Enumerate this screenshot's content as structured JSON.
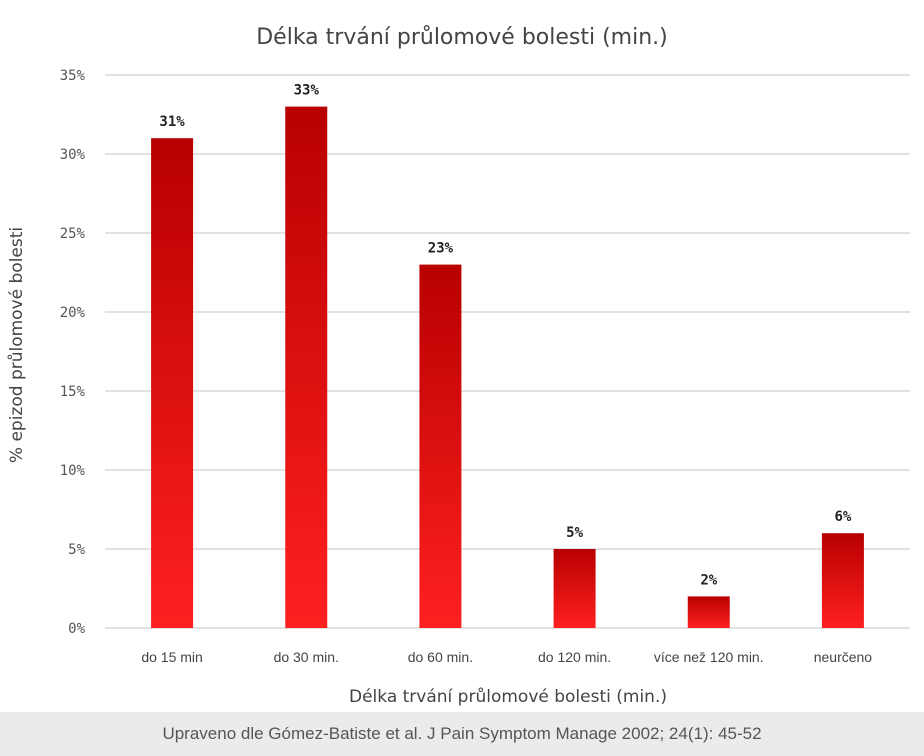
{
  "chart_data": {
    "type": "bar",
    "title": "Délka trvání průlomové bolesti (min.)",
    "xlabel": "Délka trvání průlomové bolesti (min.)",
    "ylabel": "% epizod průlomové bolesti",
    "categories": [
      "do 15 min",
      "do 30 min.",
      "do 60 min.",
      "do 120 min.",
      "více než 120 min.",
      "neurčeno"
    ],
    "values": [
      31,
      33,
      23,
      5,
      2,
      6
    ],
    "data_labels": [
      "31%",
      "33%",
      "23%",
      "5%",
      "2%",
      "6%"
    ],
    "ylim": [
      0,
      35
    ],
    "yticks": [
      0,
      5,
      10,
      15,
      20,
      25,
      30,
      35
    ],
    "ytick_labels": [
      "0%",
      "5%",
      "10%",
      "15%",
      "20%",
      "25%",
      "30%",
      "35%"
    ],
    "grid": true,
    "legend": "none",
    "colors": {
      "bar_top": "#b80000",
      "bar_bottom": "#ff2020",
      "grid": "#d9d9d9"
    }
  },
  "footer": {
    "source": "Upraveno dle Gómez-Batiste et al. J Pain Symptom Manage 2002; 24(1): 45-52"
  }
}
